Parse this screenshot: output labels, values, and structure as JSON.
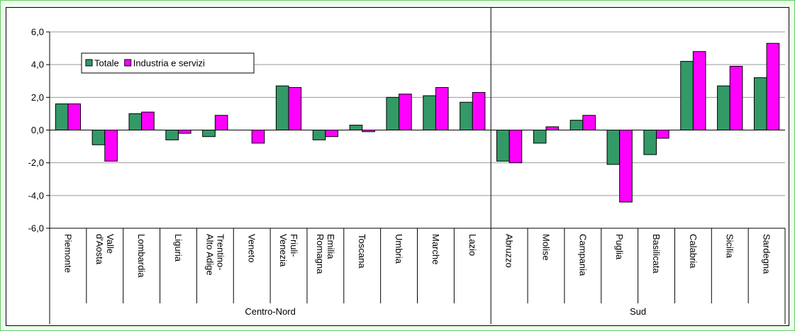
{
  "chart_data": {
    "type": "bar",
    "groups": [
      {
        "label": "Centro-Nord",
        "categories": [
          "Piemonte",
          "Valle d'Aosta",
          "Lombardia",
          "Liguria",
          "Trentino-Alto Adige",
          "Veneto",
          "Friuli-Venezia",
          "Emilia Romagna",
          "Toscana",
          "Umbria",
          "Marche",
          "Lazio"
        ]
      },
      {
        "label": "Sud",
        "categories": [
          "Abruzzo",
          "Molise",
          "Campania",
          "Puglia",
          "Basilicata",
          "Calabria",
          "Sicilia",
          "Sardegna"
        ]
      }
    ],
    "series": [
      {
        "name": "Totale",
        "color": "#339966",
        "values": [
          1.6,
          -0.9,
          1.0,
          -0.6,
          -0.4,
          0.0,
          2.7,
          -0.6,
          0.3,
          2.0,
          2.1,
          1.7,
          -1.9,
          -0.8,
          0.6,
          -2.1,
          -1.5,
          4.2,
          2.7,
          3.2
        ]
      },
      {
        "name": "Industria e servizi",
        "color": "#ff00ff",
        "values": [
          1.6,
          -1.9,
          1.1,
          -0.2,
          0.9,
          -0.8,
          2.6,
          -0.4,
          -0.1,
          2.2,
          2.6,
          2.3,
          -2.0,
          0.2,
          0.9,
          -4.4,
          -0.5,
          4.8,
          3.9,
          5.3
        ]
      }
    ],
    "ylim": [
      -6,
      6
    ],
    "yticks": [
      {
        "value": -6,
        "label": "-6,0"
      },
      {
        "value": -4,
        "label": "-4,0"
      },
      {
        "value": -2,
        "label": "-2,0"
      },
      {
        "value": 0,
        "label": "0,0"
      },
      {
        "value": 2,
        "label": "2,0"
      },
      {
        "value": 4,
        "label": "4,0"
      },
      {
        "value": 6,
        "label": "6,0"
      }
    ],
    "grid": true,
    "legend": "top-left"
  }
}
